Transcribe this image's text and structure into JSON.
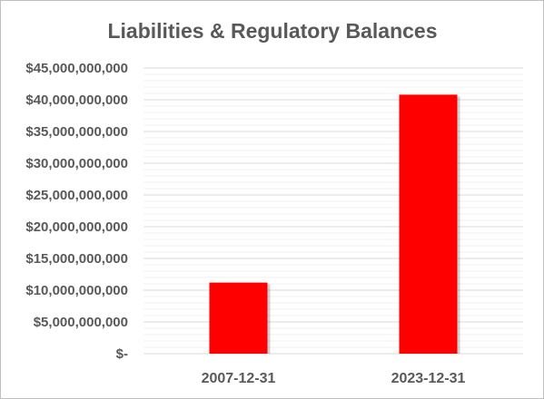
{
  "chart_data": {
    "type": "bar",
    "title": "Liabilities & Regulatory Balances",
    "xlabel": "",
    "ylabel": "",
    "categories": [
      "2007-12-31",
      "2023-12-31"
    ],
    "series": [
      {
        "values": [
          11200000000,
          40800000000
        ],
        "color": "#ff0000"
      }
    ],
    "ylim": [
      0,
      45000000000
    ],
    "ytick_values": [
      0,
      5000000000,
      10000000000,
      15000000000,
      20000000000,
      25000000000,
      30000000000,
      35000000000,
      40000000000,
      45000000000
    ],
    "ytick_labels": [
      "$-",
      "$5,000,000,000",
      "$10,000,000,000",
      "$15,000,000,000",
      "$20,000,000,000",
      "$25,000,000,000",
      "$30,000,000,000",
      "$35,000,000,000",
      "$40,000,000,000",
      "$45,000,000,000"
    ],
    "grid": true,
    "legend": "none"
  }
}
